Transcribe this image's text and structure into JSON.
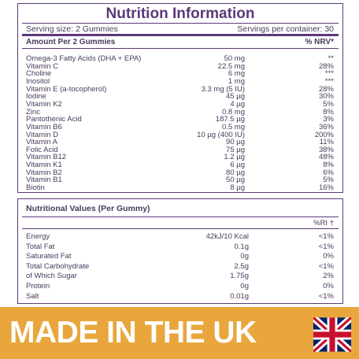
{
  "title": "Nutrition Information",
  "serving_size": "Serving size: 2 Gummies",
  "servings_per_container": "Servings per container: 30",
  "table": {
    "header": [
      "Amount Per 2 Gummies",
      "% NRV*"
    ],
    "rows": [
      [
        "Omega-3 Fatty Acids (DHA + EPA)",
        "50 mg",
        "**"
      ],
      [
        "Vitamin C",
        "22.5 mg",
        "28%"
      ],
      [
        "Choline",
        "6 mg",
        "***"
      ],
      [
        "Inositol",
        "1 mg",
        "***"
      ],
      [
        "Vitamin E (a-tocopherol)",
        "3.3 mg (5 IU)",
        "28%"
      ],
      [
        "Iodine",
        "45 µg",
        "30%"
      ],
      [
        "Vitamin K2",
        "4 µg",
        "5%"
      ],
      [
        "Zinc",
        "0.8 mg",
        "8%"
      ],
      [
        "Pantothenic Acid",
        "187.5 µg",
        "3%"
      ],
      [
        "Vitamin B6",
        "0.5 mg",
        "36%"
      ],
      [
        "Vitamin D",
        "10 µg (400 IU)",
        "200%"
      ],
      [
        "Vitamin A",
        "90 µg",
        "11%"
      ],
      [
        "Folic Acid",
        "75 µg",
        "38%"
      ],
      [
        "Vitamin B12",
        "1.2 µg",
        "48%"
      ],
      [
        "Vitamin K1",
        "6 µg",
        "8%"
      ],
      [
        "Vitamin B2",
        "80 µg",
        "6%"
      ],
      [
        "Vitamin B1",
        "50 µg",
        "5%"
      ],
      [
        "Biotin",
        "8 µg",
        "16%"
      ]
    ]
  },
  "values_table": {
    "title": "Nutritional Values (Per Gummy)",
    "header": "%RI †",
    "rows": [
      [
        "Energy",
        "42kJ/10 Kcal",
        "<1%"
      ],
      [
        "Total Fat",
        "0.1g",
        "<1%"
      ],
      [
        "Saturated Fat",
        "0g",
        "0%"
      ],
      [
        "Total Carbohydrate",
        "2.5g",
        "<1%"
      ],
      [
        "of Which Sugar",
        "1.75g",
        "2%"
      ],
      [
        "Protein",
        "0g",
        "0%"
      ],
      [
        "Salt",
        "0.01g",
        "<1%"
      ]
    ]
  },
  "banner": "MADE IN THE UK"
}
